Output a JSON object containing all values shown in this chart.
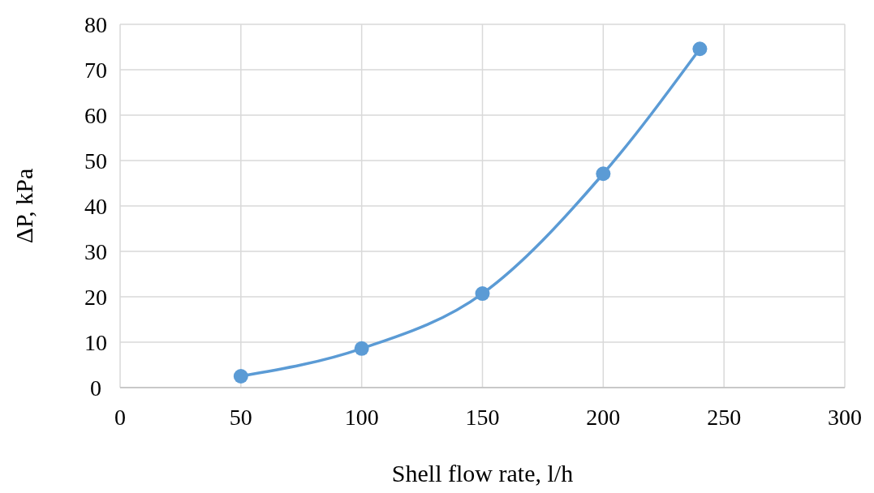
{
  "chart_data": {
    "type": "line",
    "xlabel": "Shell flow rate, l/h",
    "ylabel": "ΔP, kPa",
    "x": [
      50,
      100,
      150,
      200,
      240
    ],
    "series": [
      {
        "color": "#5b9bd5",
        "values": [
          2.5,
          8.6,
          20.7,
          47.1,
          74.6
        ]
      }
    ],
    "xlim": [
      0,
      300
    ],
    "xticks": [
      0,
      50,
      100,
      150,
      200,
      250,
      300
    ],
    "ylim": [
      0,
      80
    ],
    "yticks": [
      0,
      10,
      20,
      30,
      40,
      50,
      60,
      70,
      80
    ],
    "grid": true,
    "marker": "circle",
    "line_style": "solid"
  }
}
